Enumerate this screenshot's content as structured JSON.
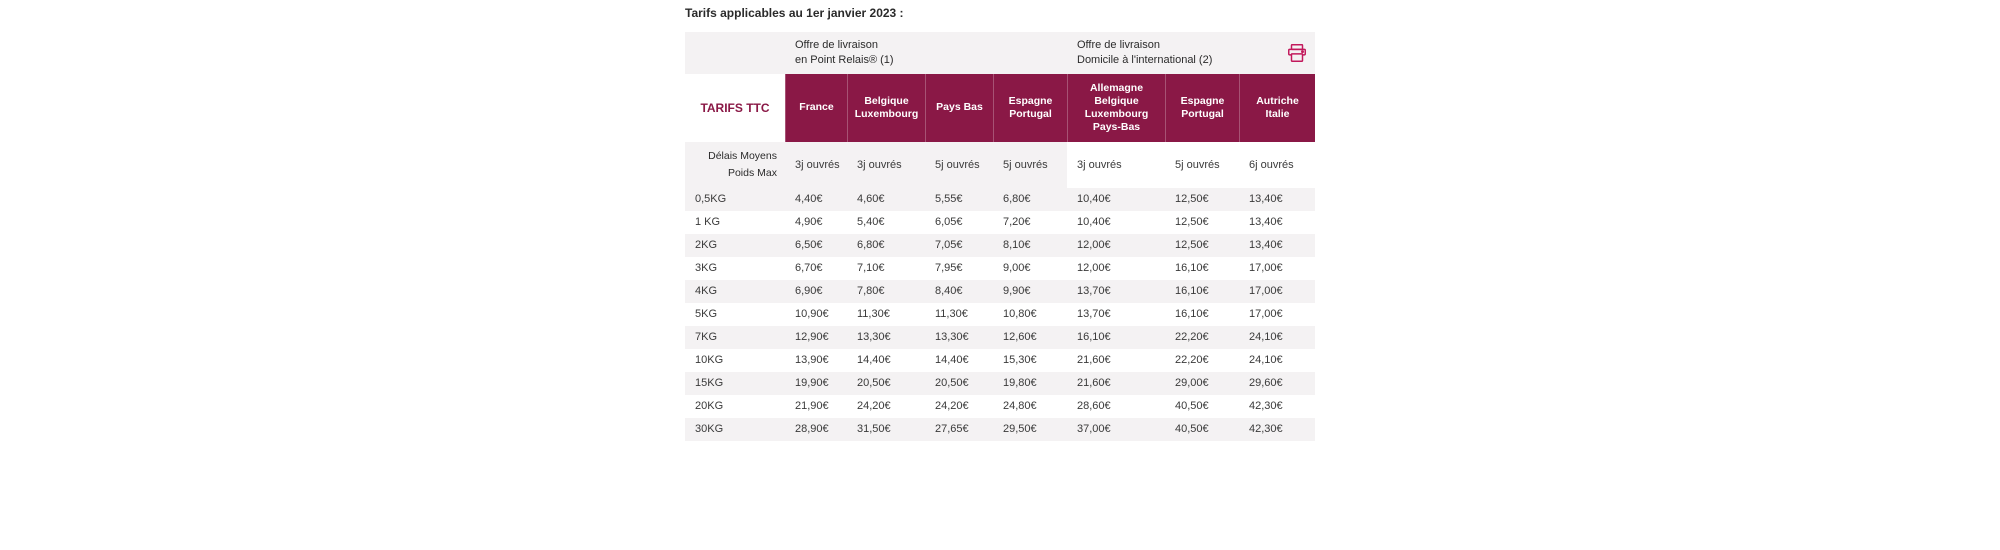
{
  "title": "Tarifs applicables au 1er janvier 2023 :",
  "tarifs_label": "TARIFS TTC",
  "offer1_line1": "Offre de livraison",
  "offer1_line2": "en Point Relais® (1)",
  "offer2_line1": "Offre de livraison",
  "offer2_line2": "Domicile à l'international (2)",
  "print_icon_color": "#c2185b",
  "header_bg": "#8a1846",
  "cols": {
    "c1": "France",
    "c2": "Belgique\nLuxembourg",
    "c3": "Pays Bas",
    "c4": "Espagne\nPortugal",
    "c5": "Allemagne\nBelgique\nLuxembourg\nPays-Bas",
    "c6": "Espagne\nPortugal",
    "c7": "Autriche\nItalie"
  },
  "delais_label1": "Délais Moyens",
  "delais_label2": "Poids Max",
  "delais": {
    "c1": "3j ouvrés",
    "c2": "3j ouvrés",
    "c3": "5j ouvrés",
    "c4": "5j ouvrés",
    "c5": "3j ouvrés",
    "c6": "5j ouvrés",
    "c7": "6j ouvrés"
  },
  "rows": [
    {
      "w": "0,5KG",
      "p": [
        "4,40€",
        "4,60€",
        "5,55€",
        "6,80€",
        "10,40€",
        "12,50€",
        "13,40€"
      ]
    },
    {
      "w": "1 KG",
      "p": [
        "4,90€",
        "5,40€",
        "6,05€",
        "7,20€",
        "10,40€",
        "12,50€",
        "13,40€"
      ]
    },
    {
      "w": "2KG",
      "p": [
        "6,50€",
        "6,80€",
        "7,05€",
        "8,10€",
        "12,00€",
        "12,50€",
        "13,40€"
      ]
    },
    {
      "w": "3KG",
      "p": [
        "6,70€",
        "7,10€",
        "7,95€",
        "9,00€",
        "12,00€",
        "16,10€",
        "17,00€"
      ]
    },
    {
      "w": "4KG",
      "p": [
        "6,90€",
        "7,80€",
        "8,40€",
        "9,90€",
        "13,70€",
        "16,10€",
        "17,00€"
      ]
    },
    {
      "w": "5KG",
      "p": [
        "10,90€",
        "11,30€",
        "11,30€",
        "10,80€",
        "13,70€",
        "16,10€",
        "17,00€"
      ]
    },
    {
      "w": "7KG",
      "p": [
        "12,90€",
        "13,30€",
        "13,30€",
        "12,60€",
        "16,10€",
        "22,20€",
        "24,10€"
      ]
    },
    {
      "w": "10KG",
      "p": [
        "13,90€",
        "14,40€",
        "14,40€",
        "15,30€",
        "21,60€",
        "22,20€",
        "24,10€"
      ]
    },
    {
      "w": "15KG",
      "p": [
        "19,90€",
        "20,50€",
        "20,50€",
        "19,80€",
        "21,60€",
        "29,00€",
        "29,60€"
      ]
    },
    {
      "w": "20KG",
      "p": [
        "21,90€",
        "24,20€",
        "24,20€",
        "24,80€",
        "28,60€",
        "40,50€",
        "42,30€"
      ]
    },
    {
      "w": "30KG",
      "p": [
        "28,90€",
        "31,50€",
        "27,65€",
        "29,50€",
        "37,00€",
        "40,50€",
        "42,30€"
      ]
    }
  ]
}
